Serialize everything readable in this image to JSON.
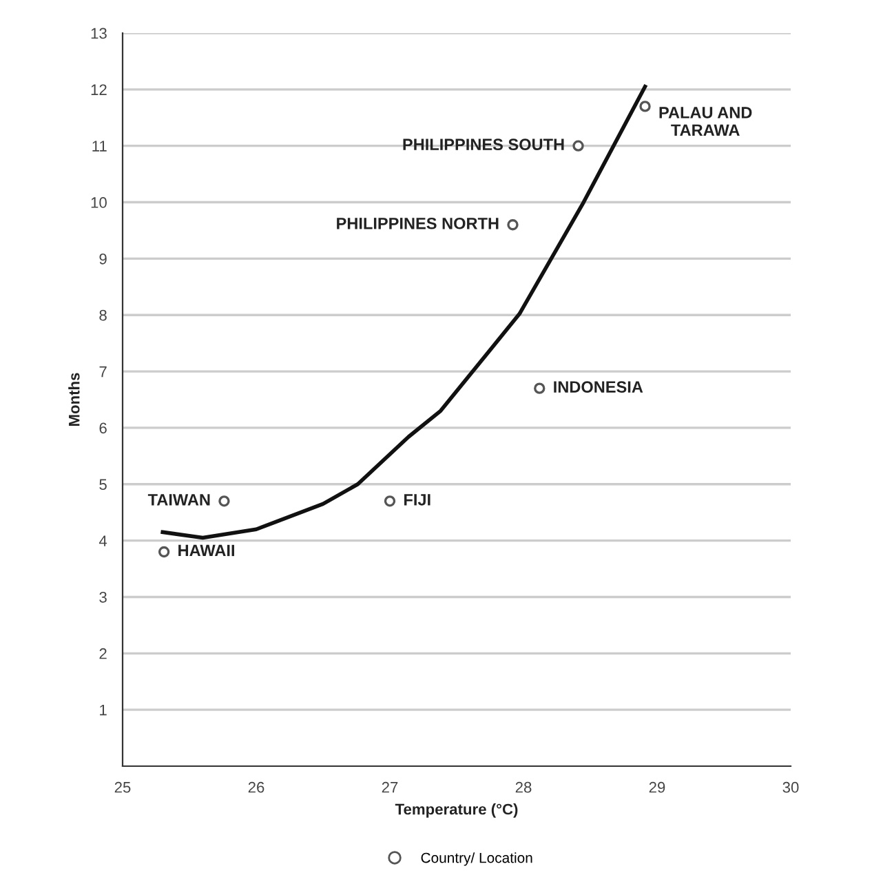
{
  "chart_data": {
    "type": "scatter",
    "xlabel": "Temperature (°C)",
    "ylabel": "Months",
    "xlim": [
      25,
      30
    ],
    "xticks": [
      25,
      26,
      27,
      28,
      29,
      30
    ],
    "ylim": [
      0,
      13
    ],
    "yticks": [
      1,
      2,
      3,
      4,
      5,
      6,
      7,
      8,
      9,
      10,
      11,
      12,
      13
    ],
    "grid": "y",
    "legend": "bottom",
    "marker": "circle",
    "series": [
      {
        "name": "Country/ Location",
        "color": "#555555",
        "x": [
          25.31,
          25.76,
          27.0,
          28.12,
          27.92,
          28.41,
          28.91
        ],
        "values": [
          3.8,
          4.7,
          4.7,
          6.7,
          9.6,
          11.0,
          11.7
        ]
      },
      {
        "type": "line",
        "color": "#111111",
        "marker": "none",
        "line_style": "solid",
        "x": [
          25.3,
          25.6,
          26.0,
          26.5,
          26.76,
          27.14,
          27.38,
          27.97,
          28.45,
          28.91
        ],
        "values": [
          4.15,
          4.05,
          4.2,
          4.65,
          5.0,
          5.84,
          6.3,
          8.02,
          10.0,
          12.05
        ]
      }
    ],
    "annotations": [
      {
        "text": "HAWAII",
        "x": 25.31,
        "y": 3.8
      },
      {
        "text": "TAIWAN",
        "x": 25.76,
        "y": 4.7
      },
      {
        "text": "FIJI",
        "x": 27.0,
        "y": 4.7
      },
      {
        "text": "INDONESIA",
        "x": 28.12,
        "y": 6.7
      },
      {
        "text": "PHILIPPINES NORTH",
        "x": 27.92,
        "y": 9.6
      },
      {
        "text": "PHILIPPINES SOUTH",
        "x": 28.41,
        "y": 11.0
      },
      {
        "text": "PALAU AND\nTARAWA",
        "x": 28.91,
        "y": 11.7
      }
    ]
  }
}
